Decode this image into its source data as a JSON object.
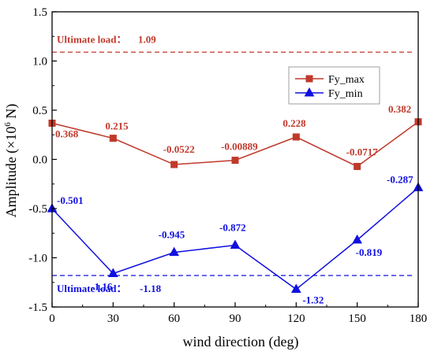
{
  "chart_data": {
    "type": "line",
    "x": [
      0,
      30,
      60,
      90,
      120,
      150,
      180
    ],
    "series": [
      {
        "name": "Fy_max",
        "values": [
          0.368,
          0.215,
          -0.0522,
          -0.00889,
          0.228,
          -0.0717,
          0.382
        ],
        "labels": [
          "0.368",
          "0.215",
          "-0.0522",
          "-0.00889",
          "0.228",
          "-0.0717",
          "0.382"
        ],
        "color": "#c0392b",
        "marker": "square"
      },
      {
        "name": "Fy_min",
        "values": [
          -0.501,
          -1.16,
          -0.945,
          -0.872,
          -1.32,
          -0.819,
          -0.287
        ],
        "labels": [
          "-0.501",
          "-1.16",
          "-0.945",
          "-0.872",
          "-1.32",
          "-0.819",
          "-0.287"
        ],
        "color": "#1010e0",
        "marker": "triangle"
      }
    ],
    "reference_lines": [
      {
        "label": "Ultimate load：",
        "value_label": "1.09",
        "value": 1.09,
        "color": "#c0392b",
        "style": "dashed"
      },
      {
        "label": "Ultimate load：",
        "value_label": "-1.18",
        "value": -1.18,
        "color": "#1010e0",
        "style": "dashed"
      }
    ],
    "xlabel": "wind direction (deg)",
    "ylabel_main": "Amplitude (×10",
    "ylabel_sup": "6",
    "ylabel_tail": " N)",
    "xlim": [
      0,
      180
    ],
    "ylim": [
      -1.5,
      1.5
    ],
    "xticks": [
      "0",
      "30",
      "60",
      "90",
      "120",
      "150",
      "180"
    ],
    "yticks": [
      "-1.5",
      "-1.0",
      "-0.5",
      "0.0",
      "0.5",
      "1.0",
      "1.5"
    ],
    "ytick_values": [
      -1.5,
      -1.0,
      -0.5,
      0.0,
      0.5,
      1.0,
      1.5
    ],
    "grid": false,
    "legend_position": "upper-right-inside"
  }
}
